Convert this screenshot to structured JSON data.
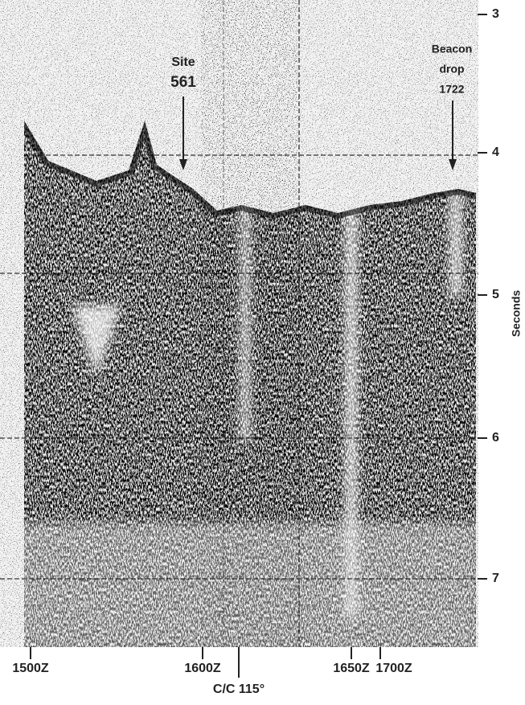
{
  "y_axis": {
    "label": "Seconds",
    "ticks": [
      "3",
      "4",
      "5",
      "6",
      "7"
    ]
  },
  "annotations": [
    {
      "lines": [
        "Site",
        "561"
      ]
    },
    {
      "lines": [
        "Beacon",
        "drop",
        "1722"
      ]
    }
  ],
  "x_labels": [
    "1500Z",
    "1600Z",
    "C/C 115°",
    "1650Z",
    "1700Z"
  ]
}
